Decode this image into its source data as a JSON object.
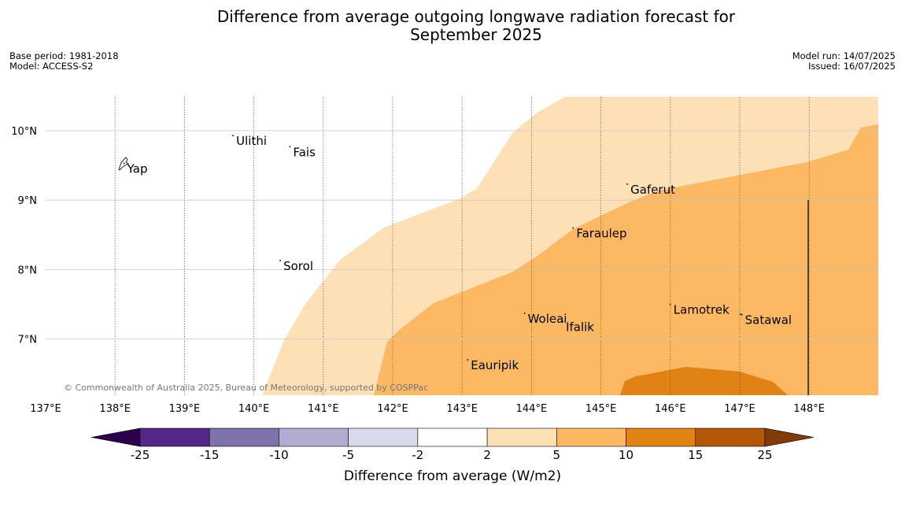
{
  "header": {
    "title_line1": "Difference from average outgoing longwave radiation forecast for",
    "title_line2": "September 2025",
    "base_period": "Base period: 1981-2018",
    "model": "Model: ACCESS-S2",
    "model_run": "Model run: 14/07/2025",
    "issued": "Issued: 16/07/2025"
  },
  "map": {
    "lon_range": [
      137,
      149
    ],
    "lat_range": [
      6.2,
      10.5
    ],
    "lon_ticks": [
      "137°E",
      "138°E",
      "139°E",
      "140°E",
      "141°E",
      "142°E",
      "143°E",
      "144°E",
      "145°E",
      "146°E",
      "147°E",
      "148°E"
    ],
    "lat_ticks": [
      "10°N",
      "9°N",
      "8°N",
      "7°N"
    ],
    "copyright": "© Commonwealth of Australia 2025, Bureau of Meteorology, supported by COSPPac",
    "places": [
      {
        "name": "Ulithi",
        "lon": 139.7,
        "lat": 9.93
      },
      {
        "name": "Fais",
        "lon": 140.52,
        "lat": 9.77
      },
      {
        "name": "Yap",
        "lon": 138.13,
        "lat": 9.53
      },
      {
        "name": "Gaferut",
        "lon": 145.38,
        "lat": 9.23
      },
      {
        "name": "Faraulep",
        "lon": 144.6,
        "lat": 8.6
      },
      {
        "name": "Sorol",
        "lon": 140.38,
        "lat": 8.13
      },
      {
        "name": "Lamotrek",
        "lon": 146.0,
        "lat": 7.5
      },
      {
        "name": "Woleai",
        "lon": 143.9,
        "lat": 7.37
      },
      {
        "name": "Ifalik",
        "lon": 144.45,
        "lat": 7.25
      },
      {
        "name": "Satawal",
        "lon": 147.03,
        "lat": 7.35
      },
      {
        "name": "Eauripik",
        "lon": 143.08,
        "lat": 6.7
      }
    ]
  },
  "colorbar": {
    "title": "Difference from average (W/m2)",
    "labels": [
      "-25",
      "-15",
      "-10",
      "-5",
      "-2",
      "2",
      "5",
      "10",
      "15",
      "25"
    ],
    "colors": {
      "under": "#2d004b",
      "bins": [
        "#542788",
        "#8073ac",
        "#b2abd2",
        "#d8daeb",
        "#ffffff",
        "#fee0b6",
        "#fdb863",
        "#e08214",
        "#b35806"
      ],
      "over": "#7f3b08"
    }
  }
}
